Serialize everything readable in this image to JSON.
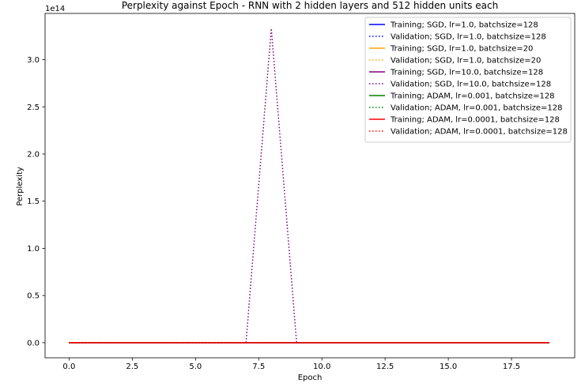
{
  "chart_data": {
    "type": "line",
    "title": "Perplexity against Epoch - RNN with 2 hidden layers and 512 hidden units each",
    "xlabel": "Epoch",
    "ylabel": "Perplexity",
    "y_offset_label": "1e14",
    "xlim": [
      -0.95,
      20.0
    ],
    "ylim": [
      -0.16,
      3.49
    ],
    "y_scale_factor": 100000000000000.0,
    "x_ticks": [
      0.0,
      2.5,
      5.0,
      7.5,
      10.0,
      12.5,
      15.0,
      17.5
    ],
    "x_tick_labels": [
      "0.0",
      "2.5",
      "5.0",
      "7.5",
      "10.0",
      "12.5",
      "15.0",
      "17.5"
    ],
    "y_ticks": [
      0.0,
      0.5,
      1.0,
      1.5,
      2.0,
      2.5,
      3.0
    ],
    "y_tick_labels": [
      "0.0",
      "0.5",
      "1.0",
      "1.5",
      "2.0",
      "2.5",
      "3.0"
    ],
    "grid": false,
    "legend_position": "top-right",
    "x": [
      0,
      1,
      2,
      3,
      4,
      5,
      6,
      7,
      8,
      9,
      10,
      11,
      12,
      13,
      14,
      15,
      16,
      17,
      18,
      19
    ],
    "series": [
      {
        "name": "Training; SGD, lr=1.0, batchsize=128",
        "color": "#0000ff",
        "dash": "solid",
        "values": [
          0,
          0,
          0,
          0,
          0,
          0,
          0,
          0,
          0,
          0,
          0,
          0,
          0,
          0,
          0,
          0,
          0,
          0,
          0,
          0
        ]
      },
      {
        "name": "Validation; SGD, lr=1.0, batchsize=128",
        "color": "#0000ff",
        "dash": "dotted",
        "values": [
          0,
          0,
          0,
          0,
          0,
          0,
          0,
          0,
          0,
          0,
          0,
          0,
          0,
          0,
          0,
          0,
          0,
          0,
          0,
          0
        ]
      },
      {
        "name": "Training; SGD, lr=1.0, batchsize=20",
        "color": "#ffa500",
        "dash": "solid",
        "values": [
          0,
          0,
          0,
          0,
          0,
          0,
          0,
          0,
          0,
          0,
          0,
          0,
          0,
          0,
          0,
          0,
          0,
          0,
          0,
          0
        ]
      },
      {
        "name": "Validation; SGD, lr=1.0, batchsize=20",
        "color": "#ffa500",
        "dash": "dotted",
        "values": [
          0,
          0,
          0,
          0,
          0,
          0,
          0,
          0,
          0,
          0,
          0,
          0,
          0,
          0,
          0,
          0,
          0,
          0,
          0,
          0
        ]
      },
      {
        "name": "Training; SGD, lr=10.0, batchsize=128",
        "color": "#800080",
        "dash": "solid",
        "values": [
          0,
          0,
          0,
          0,
          0,
          0,
          0,
          0,
          0,
          0,
          0,
          0,
          0,
          0,
          0,
          0,
          0,
          0,
          0,
          0
        ]
      },
      {
        "name": "Validation; SGD, lr=10.0, batchsize=128",
        "color": "#800080",
        "dash": "dotted",
        "values": [
          0,
          0,
          0,
          0,
          0,
          0,
          0,
          0,
          3.33,
          0,
          0,
          0,
          0,
          0,
          0,
          0,
          0,
          0,
          0,
          0
        ]
      },
      {
        "name": "Training; ADAM, lr=0.001, batchsize=128",
        "color": "#008000",
        "dash": "solid",
        "values": [
          0,
          0,
          0,
          0,
          0,
          0,
          0,
          0,
          0,
          0,
          0,
          0,
          0,
          0,
          0,
          0,
          0,
          0,
          0,
          0
        ]
      },
      {
        "name": "Validation; ADAM, lr=0.001, batchsize=128",
        "color": "#008000",
        "dash": "dotted",
        "values": [
          0,
          0,
          0,
          0,
          0,
          0,
          0,
          0,
          0,
          0,
          0,
          0,
          0,
          0,
          0,
          0,
          0,
          0,
          0,
          0
        ]
      },
      {
        "name": "Training; ADAM, lr=0.0001, batchsize=128",
        "color": "#ff0000",
        "dash": "solid",
        "values": [
          0,
          0,
          0,
          0,
          0,
          0,
          0,
          0,
          0,
          0,
          0,
          0,
          0,
          0,
          0,
          0,
          0,
          0,
          0,
          0
        ]
      },
      {
        "name": "Validation; ADAM, lr=0.0001, batchsize=128",
        "color": "#ff0000",
        "dash": "dotted",
        "values": [
          0,
          0,
          0,
          0,
          0,
          0,
          0,
          0,
          0,
          0,
          0,
          0,
          0,
          0,
          0,
          0,
          0,
          0,
          0,
          0
        ]
      }
    ]
  }
}
